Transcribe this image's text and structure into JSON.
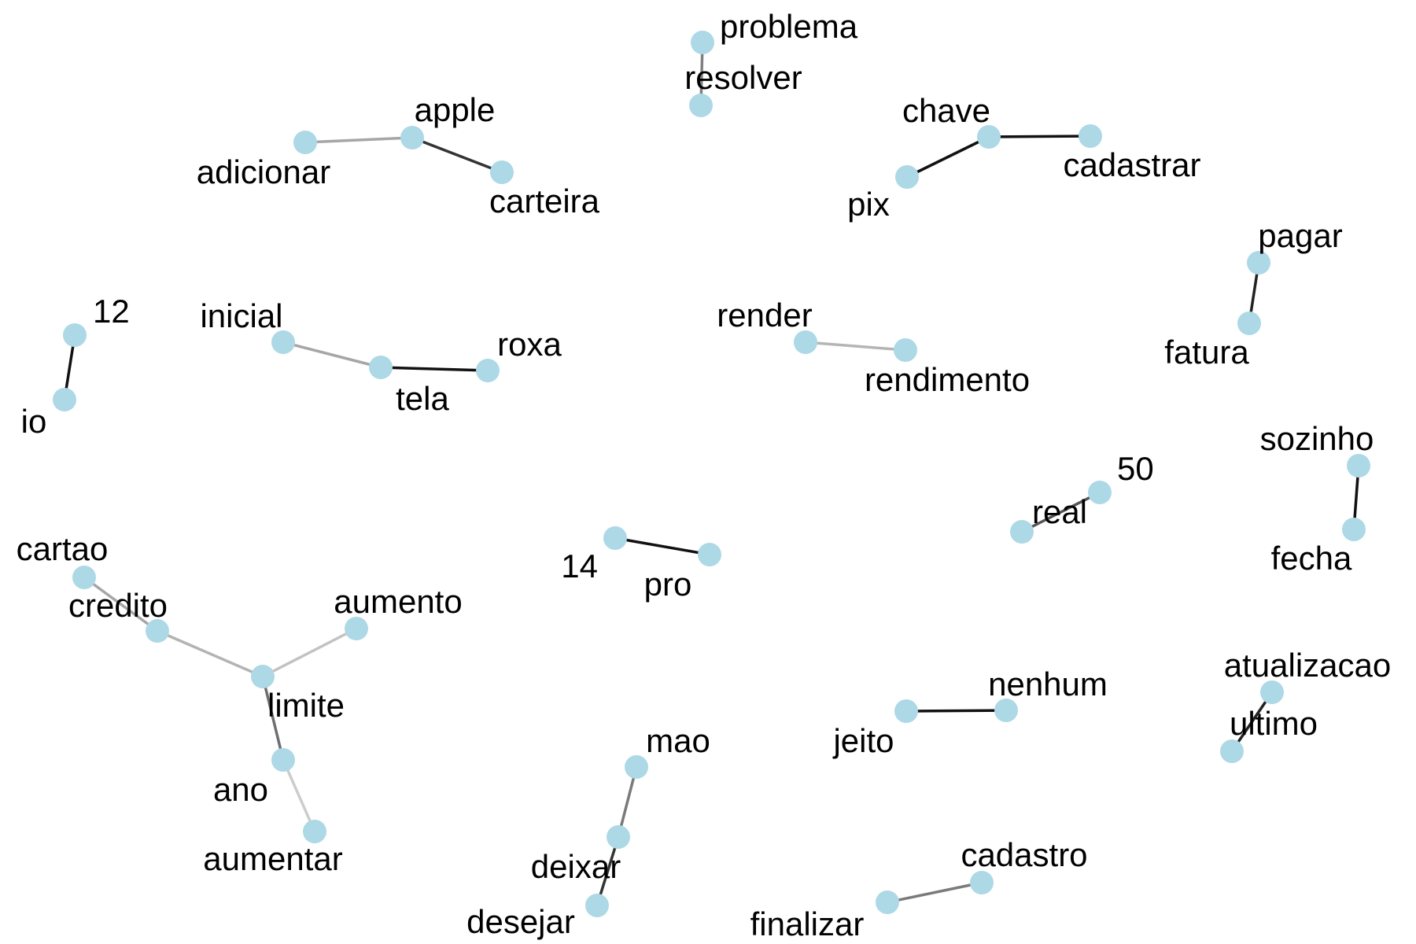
{
  "chart_data": {
    "type": "network",
    "node_color": "#add8e6",
    "nodes": [
      {
        "id": "problema"
      },
      {
        "id": "resolver"
      },
      {
        "id": "apple"
      },
      {
        "id": "adicionar"
      },
      {
        "id": "carteira"
      },
      {
        "id": "chave"
      },
      {
        "id": "pix"
      },
      {
        "id": "cadastrar"
      },
      {
        "id": "pagar"
      },
      {
        "id": "fatura"
      },
      {
        "id": "12"
      },
      {
        "id": "io"
      },
      {
        "id": "inicial"
      },
      {
        "id": "tela"
      },
      {
        "id": "roxa"
      },
      {
        "id": "render"
      },
      {
        "id": "rendimento"
      },
      {
        "id": "sozinho"
      },
      {
        "id": "fecha"
      },
      {
        "id": "50"
      },
      {
        "id": "real"
      },
      {
        "id": "14"
      },
      {
        "id": "pro"
      },
      {
        "id": "cartao"
      },
      {
        "id": "credito"
      },
      {
        "id": "limite"
      },
      {
        "id": "aumento"
      },
      {
        "id": "ano"
      },
      {
        "id": "aumentar"
      },
      {
        "id": "atualizacao"
      },
      {
        "id": "ultimo"
      },
      {
        "id": "nenhum"
      },
      {
        "id": "jeito"
      },
      {
        "id": "mao"
      },
      {
        "id": "deixar"
      },
      {
        "id": "desejar"
      },
      {
        "id": "cadastro"
      },
      {
        "id": "finalizar"
      }
    ],
    "edges": [
      {
        "source": "problema",
        "target": "resolver",
        "color": "#808080"
      },
      {
        "source": "adicionar",
        "target": "apple",
        "color": "#a6a6a6"
      },
      {
        "source": "apple",
        "target": "carteira",
        "color": "#333333"
      },
      {
        "source": "pix",
        "target": "chave",
        "color": "#111111"
      },
      {
        "source": "chave",
        "target": "cadastrar",
        "color": "#111111"
      },
      {
        "source": "pagar",
        "target": "fatura",
        "color": "#222222"
      },
      {
        "source": "12",
        "target": "io",
        "color": "#111111"
      },
      {
        "source": "inicial",
        "target": "tela",
        "color": "#a6a6a6"
      },
      {
        "source": "tela",
        "target": "roxa",
        "color": "#111111"
      },
      {
        "source": "render",
        "target": "rendimento",
        "color": "#b5b5b5"
      },
      {
        "source": "sozinho",
        "target": "fecha",
        "color": "#111111"
      },
      {
        "source": "real",
        "target": "50",
        "color": "#555555"
      },
      {
        "source": "14",
        "target": "pro",
        "color": "#111111"
      },
      {
        "source": "cartao",
        "target": "credito",
        "color": "#a6a6a6"
      },
      {
        "source": "credito",
        "target": "limite",
        "color": "#b3b3b3"
      },
      {
        "source": "limite",
        "target": "aumento",
        "color": "#c2c2c2"
      },
      {
        "source": "limite",
        "target": "ano",
        "color": "#6e6e6e"
      },
      {
        "source": "ano",
        "target": "aumentar",
        "color": "#cccccc"
      },
      {
        "source": "atualizacao",
        "target": "ultimo",
        "color": "#222222"
      },
      {
        "source": "jeito",
        "target": "nenhum",
        "color": "#111111"
      },
      {
        "source": "mao",
        "target": "deixar",
        "color": "#7a7a7a"
      },
      {
        "source": "deixar",
        "target": "desejar",
        "color": "#333333"
      },
      {
        "source": "finalizar",
        "target": "cadastro",
        "color": "#7a7a7a"
      }
    ]
  }
}
